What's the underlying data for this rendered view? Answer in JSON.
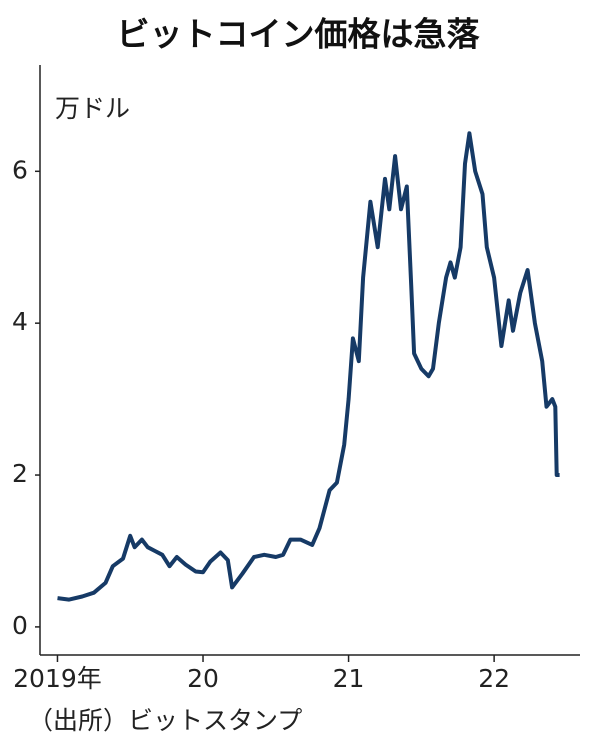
{
  "chart_data": {
    "type": "line",
    "title": "ビットコイン価格は急落",
    "y_unit": "万ドル",
    "source": "（出所）ビットスタンプ",
    "color": "#163a66",
    "x": [
      2019.0,
      2019.08,
      2019.17,
      2019.25,
      2019.33,
      2019.38,
      2019.45,
      2019.5,
      2019.53,
      2019.58,
      2019.62,
      2019.67,
      2019.72,
      2019.77,
      2019.82,
      2019.88,
      2019.95,
      2020.0,
      2020.05,
      2020.12,
      2020.17,
      2020.2,
      2020.27,
      2020.35,
      2020.42,
      2020.5,
      2020.55,
      2020.6,
      2020.67,
      2020.75,
      2020.8,
      2020.87,
      2020.92,
      2020.97,
      2021.0,
      2021.03,
      2021.07,
      2021.1,
      2021.15,
      2021.2,
      2021.25,
      2021.28,
      2021.32,
      2021.36,
      2021.4,
      2021.43,
      2021.45,
      2021.5,
      2021.55,
      2021.58,
      2021.62,
      2021.67,
      2021.7,
      2021.73,
      2021.77,
      2021.8,
      2021.83,
      2021.87,
      2021.92,
      2021.95,
      2022.0,
      2022.05,
      2022.1,
      2022.13,
      2022.18,
      2022.23,
      2022.28,
      2022.33,
      2022.36,
      2022.4,
      2022.42,
      2022.43,
      2022.45
    ],
    "values": [
      0.38,
      0.36,
      0.4,
      0.45,
      0.58,
      0.8,
      0.9,
      1.2,
      1.05,
      1.15,
      1.05,
      1.0,
      0.95,
      0.8,
      0.92,
      0.82,
      0.73,
      0.72,
      0.86,
      0.98,
      0.88,
      0.52,
      0.7,
      0.92,
      0.95,
      0.92,
      0.95,
      1.15,
      1.15,
      1.08,
      1.3,
      1.8,
      1.9,
      2.4,
      3.0,
      3.8,
      3.5,
      4.6,
      5.6,
      5.0,
      5.9,
      5.5,
      6.2,
      5.5,
      5.8,
      4.5,
      3.6,
      3.4,
      3.3,
      3.4,
      4.0,
      4.6,
      4.8,
      4.6,
      5.0,
      6.1,
      6.5,
      6.0,
      5.7,
      5.0,
      4.6,
      3.7,
      4.3,
      3.9,
      4.4,
      4.7,
      4.0,
      3.5,
      2.9,
      3.0,
      2.9,
      2.0,
      2.0
    ],
    "xlim": [
      2018.88,
      2022.59
    ],
    "xticks": [
      {
        "value": 2019,
        "label": "2019年"
      },
      {
        "value": 2020,
        "label": "20"
      },
      {
        "value": 2021,
        "label": "21"
      },
      {
        "value": 2022,
        "label": "22"
      }
    ],
    "ylim": [
      -0.37,
      7.4
    ],
    "yticks": [
      0,
      2,
      4,
      6
    ]
  }
}
